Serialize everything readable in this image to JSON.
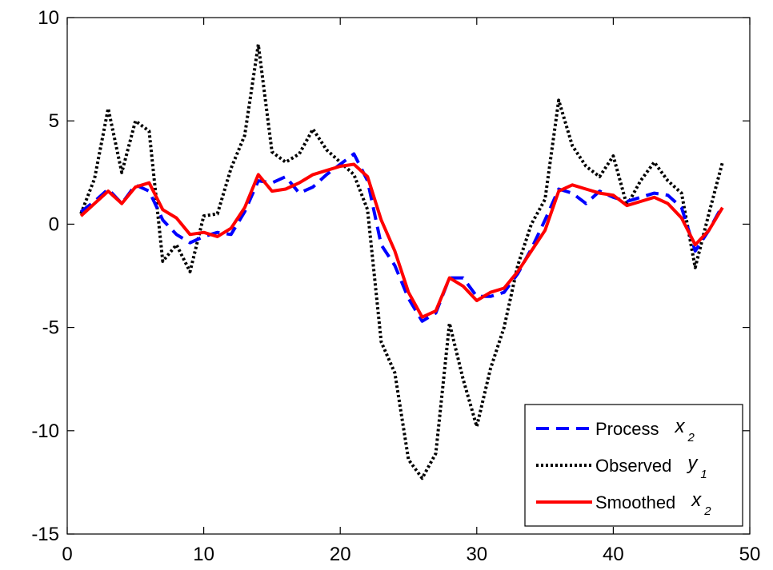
{
  "chart_data": {
    "type": "line",
    "title": "",
    "xlabel": "",
    "ylabel": "",
    "xlim": [
      0,
      50
    ],
    "ylim": [
      -15,
      10
    ],
    "xticks": [
      0,
      10,
      20,
      30,
      40,
      50
    ],
    "yticks": [
      10,
      5,
      0,
      -5,
      -10,
      -15
    ],
    "grid": false,
    "legend_position": "bottom-right",
    "x": [
      1,
      2,
      3,
      4,
      5,
      6,
      7,
      8,
      9,
      10,
      11,
      12,
      13,
      14,
      15,
      16,
      17,
      18,
      19,
      20,
      21,
      22,
      23,
      24,
      25,
      26,
      27,
      28,
      29,
      30,
      31,
      32,
      33,
      34,
      35,
      36,
      37,
      38,
      39,
      40,
      41,
      42,
      43,
      44,
      45,
      46,
      47,
      48
    ],
    "series": [
      {
        "name": "Process",
        "legend_symbol": "x",
        "legend_subscript": "2",
        "color": "#0000ff",
        "style": "dashed",
        "values": [
          0.6,
          1.1,
          1.7,
          1.0,
          1.9,
          1.6,
          0.2,
          -0.5,
          -0.9,
          -0.6,
          -0.4,
          -0.5,
          0.6,
          2.1,
          2.0,
          2.3,
          1.5,
          1.8,
          2.4,
          2.9,
          3.4,
          2.1,
          -1.0,
          -2.0,
          -3.6,
          -4.7,
          -4.3,
          -2.6,
          -2.6,
          -3.5,
          -3.5,
          -3.3,
          -2.4,
          -1.2,
          0.2,
          1.7,
          1.5,
          1.0,
          1.6,
          1.3,
          1.1,
          1.3,
          1.5,
          1.4,
          0.8,
          -1.3,
          -0.3,
          0.9
        ]
      },
      {
        "name": "Observed",
        "legend_symbol": "y",
        "legend_subscript": "1",
        "color": "#000000",
        "style": "dotted",
        "values": [
          0.5,
          2.2,
          5.6,
          2.5,
          5.0,
          4.5,
          -1.8,
          -1.0,
          -2.3,
          0.4,
          0.5,
          2.7,
          4.3,
          8.7,
          3.5,
          3.0,
          3.4,
          4.6,
          3.6,
          3.0,
          2.4,
          0.7,
          -5.7,
          -7.2,
          -11.4,
          -12.3,
          -11.1,
          -4.8,
          -7.5,
          -9.8,
          -7.0,
          -5.0,
          -2.0,
          0.0,
          1.2,
          6.0,
          3.8,
          2.8,
          2.3,
          3.3,
          0.9,
          2.1,
          3.0,
          2.1,
          1.5,
          -2.1,
          0.5,
          3.0
        ]
      },
      {
        "name": "Smoothed",
        "legend_symbol": "x",
        "legend_subscript": "2",
        "color": "#ff0000",
        "style": "solid",
        "values": [
          0.4,
          1.0,
          1.6,
          1.0,
          1.8,
          2.0,
          0.7,
          0.3,
          -0.5,
          -0.4,
          -0.6,
          -0.2,
          0.8,
          2.4,
          1.6,
          1.7,
          2.0,
          2.4,
          2.6,
          2.8,
          2.9,
          2.3,
          0.2,
          -1.3,
          -3.3,
          -4.5,
          -4.2,
          -2.6,
          -3.0,
          -3.7,
          -3.3,
          -3.1,
          -2.3,
          -1.3,
          -0.3,
          1.6,
          1.9,
          1.7,
          1.5,
          1.4,
          0.9,
          1.1,
          1.3,
          1.0,
          0.3,
          -1.0,
          -0.3,
          0.8
        ]
      }
    ]
  }
}
